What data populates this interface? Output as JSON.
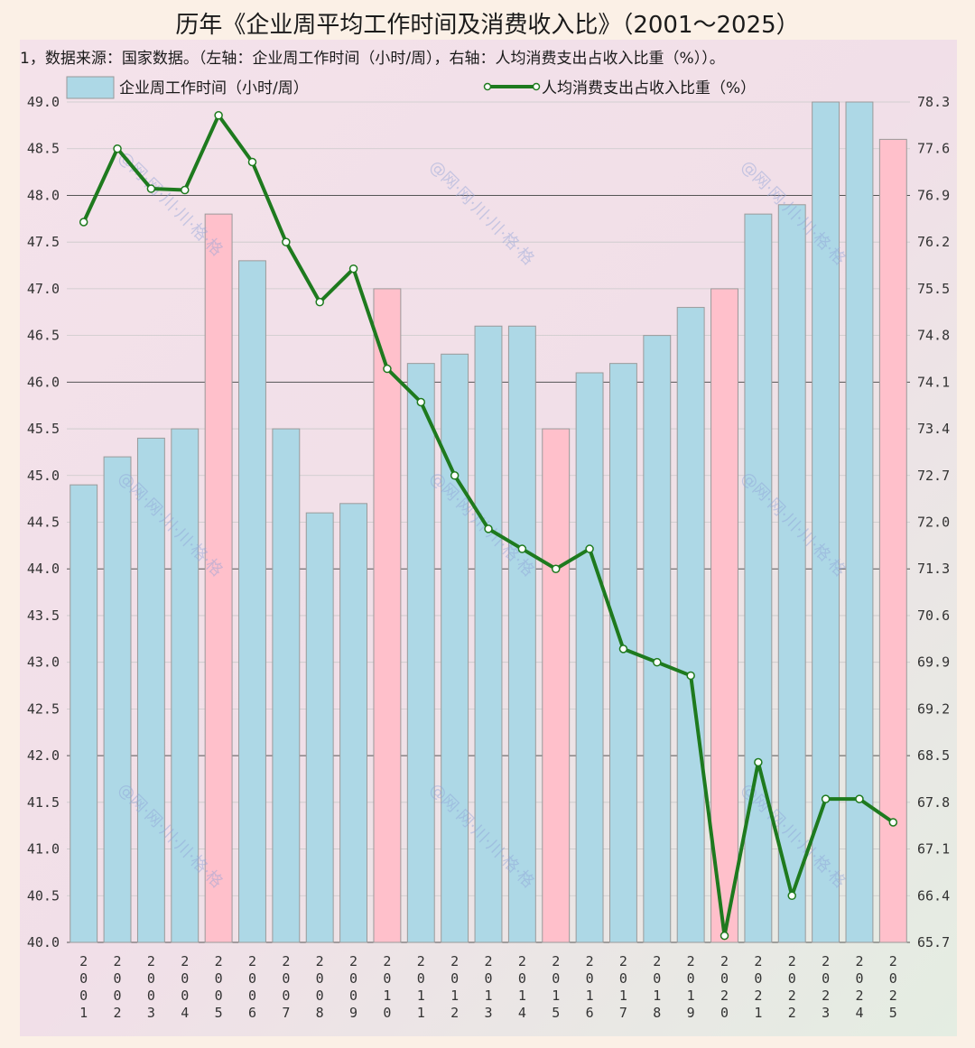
{
  "chart_data": {
    "type": "bar",
    "title": "历年《企业周平均工作时间及消费收入比》（2001～2025）",
    "note": "1，数据来源：国家数据。（左轴：企业周工作时间（小时/周），右轴：人均消费支出占收入比重（%））。",
    "categories": [
      "2001",
      "2002",
      "2003",
      "2004",
      "2005",
      "2006",
      "2007",
      "2008",
      "2009",
      "2010",
      "2011",
      "2012",
      "2013",
      "2014",
      "2015",
      "2016",
      "2017",
      "2018",
      "2019",
      "2020",
      "2021",
      "2022",
      "2023",
      "2024",
      "2025"
    ],
    "series": [
      {
        "name": "企业周工作时间（小时/周）",
        "type": "bar",
        "axis": "left",
        "values": [
          44.9,
          45.2,
          45.4,
          45.5,
          47.8,
          47.3,
          45.5,
          44.6,
          44.7,
          47.0,
          46.2,
          46.3,
          46.6,
          46.6,
          45.5,
          46.1,
          46.2,
          46.5,
          46.8,
          47.0,
          47.8,
          47.9,
          49.0,
          49.0,
          48.6
        ],
        "highlight_years": [
          "2005",
          "2010",
          "2015",
          "2020",
          "2025"
        ],
        "color": "#add8e6",
        "highlight_color": "#ffc0cb"
      },
      {
        "name": "人均消费支出占收入比重（%）",
        "type": "line",
        "axis": "right",
        "values": [
          76.5,
          77.6,
          77.0,
          76.98,
          78.1,
          77.4,
          76.2,
          75.3,
          75.8,
          74.3,
          73.8,
          72.7,
          71.9,
          71.6,
          71.3,
          71.6,
          70.1,
          69.9,
          69.7,
          65.8,
          68.4,
          66.4,
          67.85,
          67.85,
          67.5
        ],
        "color": "#1e7a1e"
      }
    ],
    "y_left": {
      "ylim": [
        40.0,
        49.0
      ],
      "ticks": [
        "40.0",
        "40.5",
        "41.0",
        "41.5",
        "42.0",
        "42.5",
        "43.0",
        "43.5",
        "44.0",
        "44.5",
        "45.0",
        "45.5",
        "46.0",
        "46.5",
        "47.0",
        "47.5",
        "48.0",
        "48.5",
        "49.0"
      ]
    },
    "y_right": {
      "ylim": [
        65.7,
        78.3
      ],
      "ticks": [
        "65.7",
        "66.4",
        "67.1",
        "67.8",
        "68.5",
        "69.2",
        "69.9",
        "70.6",
        "71.3",
        "72.0",
        "72.7",
        "73.4",
        "74.1",
        "74.8",
        "75.5",
        "76.2",
        "76.9",
        "77.6",
        "78.3"
      ]
    },
    "grid": true,
    "legend": "top",
    "watermark": "@网·网·川·川·格·格",
    "colors": {
      "background": "#fbf0e6",
      "bar": "#add8e6",
      "bar_highlight": "#ffc0cb",
      "line": "#1e7a1e",
      "grid_major": "#555555",
      "grid_minor": "#c9c9c9"
    }
  }
}
